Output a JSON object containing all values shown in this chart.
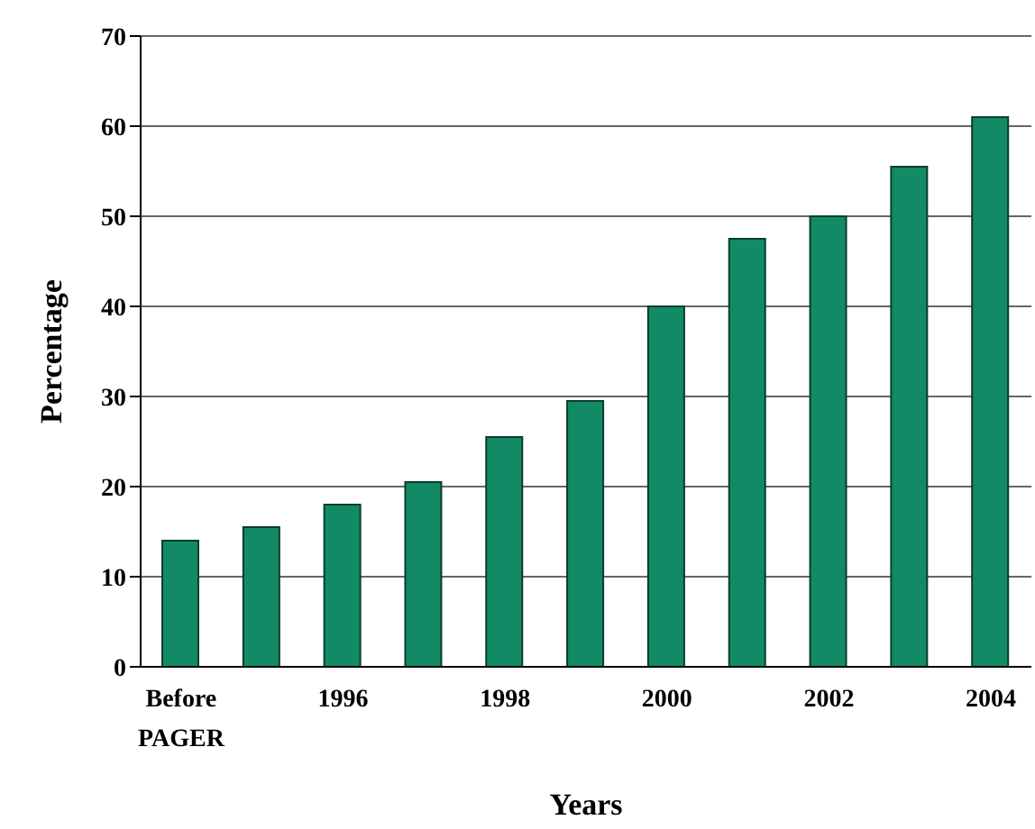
{
  "chart_data": {
    "type": "bar",
    "xlabel": "Years",
    "ylabel": "Percentage",
    "categories": [
      "Before PAGER",
      null,
      "1996",
      null,
      "1998",
      null,
      "2000",
      null,
      "2002",
      null,
      "2004"
    ],
    "values": [
      14,
      15.5,
      18,
      20.5,
      25.5,
      29.5,
      40,
      47.5,
      50,
      55.5,
      61
    ],
    "color": "#128a66",
    "ylim": [
      0,
      70
    ],
    "yticks": [
      0,
      10,
      20,
      30,
      40,
      50,
      60,
      70
    ],
    "grid": "y"
  }
}
